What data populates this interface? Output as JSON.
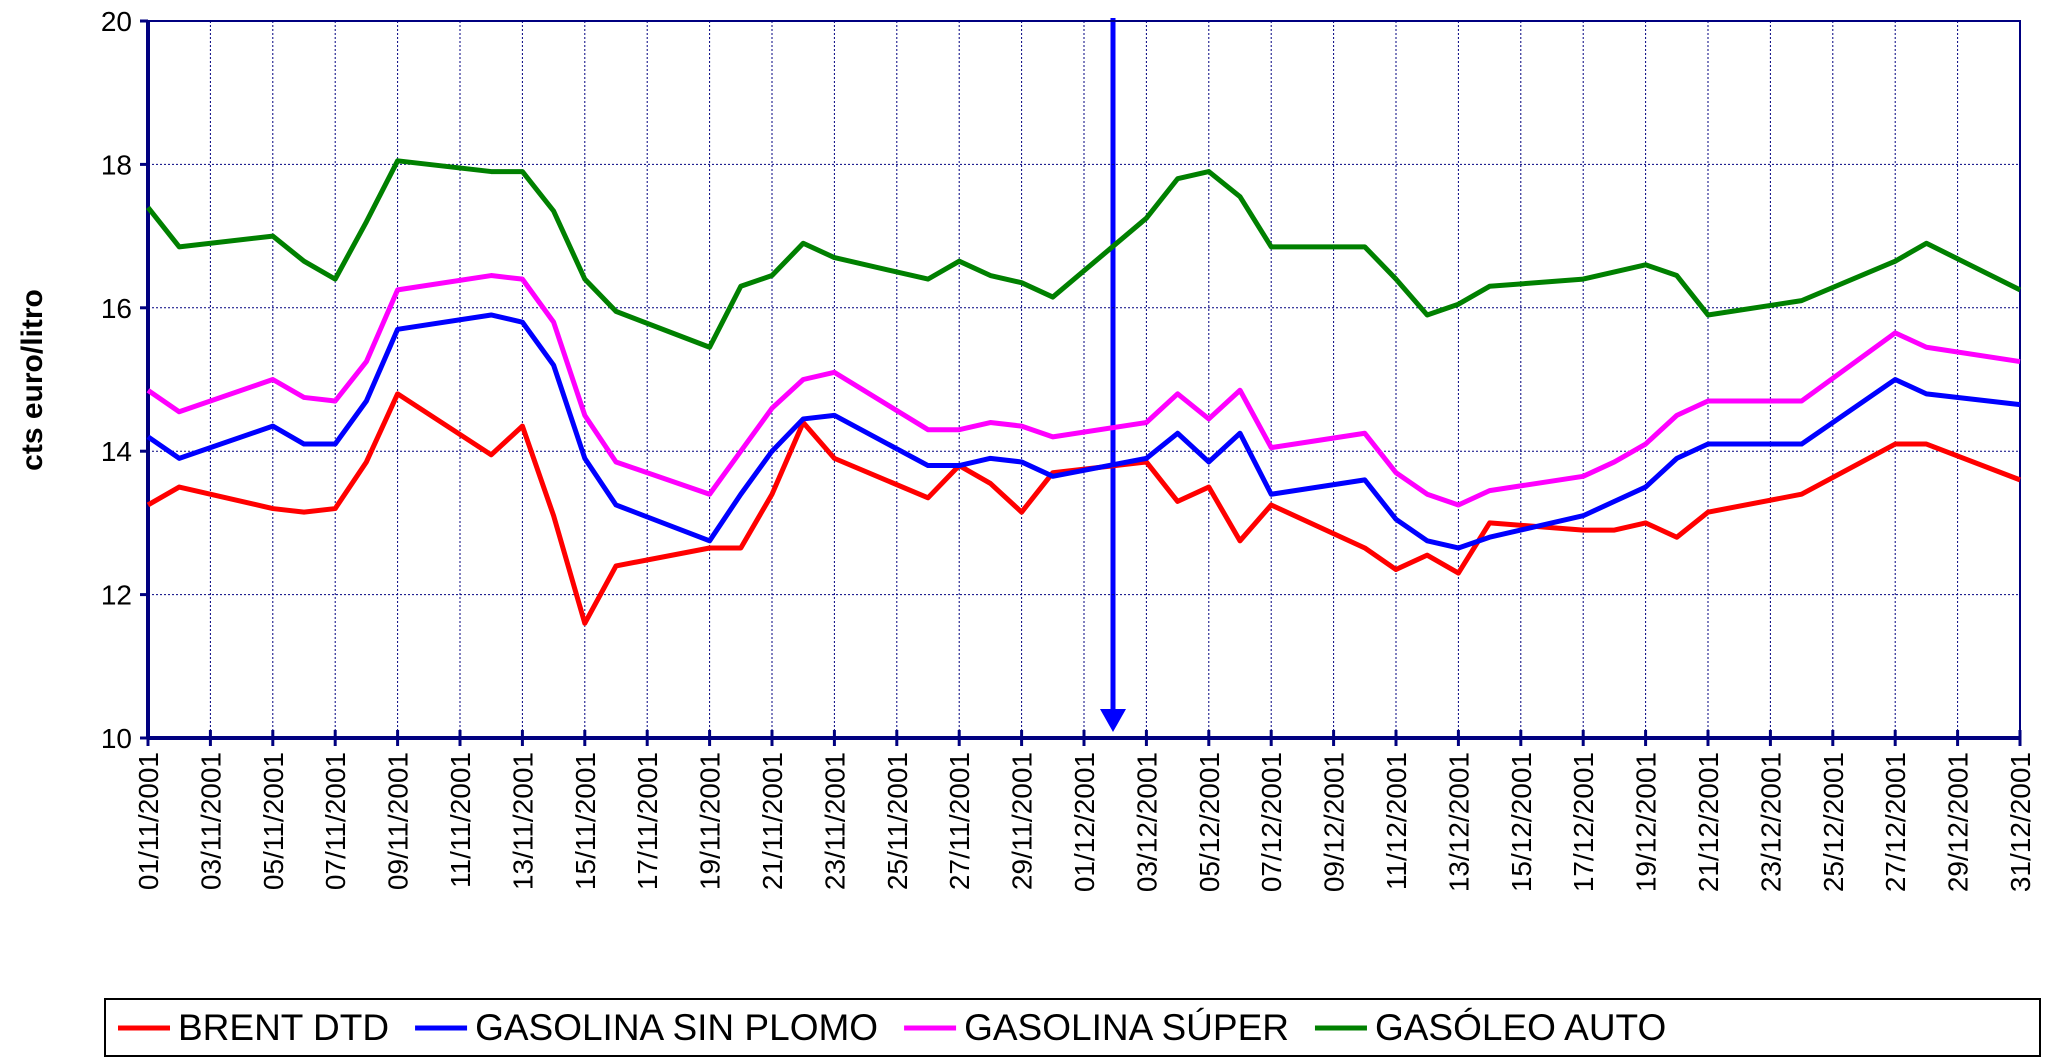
{
  "chart_data": {
    "type": "line",
    "y_label": "cts euro/litro",
    "x": [
      "01/11/2001",
      "02/11/2001",
      "05/11/2001",
      "06/11/2001",
      "07/11/2001",
      "08/11/2001",
      "09/11/2001",
      "12/11/2001",
      "13/11/2001",
      "14/11/2001",
      "15/11/2001",
      "16/11/2001",
      "19/11/2001",
      "20/11/2001",
      "21/11/2001",
      "22/11/2001",
      "23/11/2001",
      "26/11/2001",
      "27/11/2001",
      "28/11/2001",
      "29/11/2001",
      "30/11/2001",
      "03/12/2001",
      "04/12/2001",
      "05/12/2001",
      "06/12/2001",
      "07/12/2001",
      "10/12/2001",
      "11/12/2001",
      "12/12/2001",
      "13/12/2001",
      "14/12/2001",
      "17/12/2001",
      "18/12/2001",
      "19/12/2001",
      "20/12/2001",
      "21/12/2001",
      "24/12/2001",
      "27/12/2001",
      "28/12/2001",
      "31/12/2001"
    ],
    "series": [
      {
        "name": "BRENT DTD",
        "color": "#ff0000",
        "values": [
          13.25,
          13.5,
          13.2,
          13.15,
          13.2,
          13.85,
          14.8,
          13.95,
          14.35,
          13.1,
          11.6,
          12.4,
          12.65,
          12.65,
          13.4,
          14.4,
          13.9,
          13.35,
          13.8,
          13.55,
          13.15,
          13.7,
          13.85,
          13.3,
          13.5,
          12.75,
          13.25,
          12.65,
          12.35,
          12.55,
          12.3,
          13.0,
          12.9,
          12.9,
          13.0,
          12.8,
          13.15,
          13.4,
          14.1,
          14.1,
          13.6
        ]
      },
      {
        "name": "GASOLINA SIN PLOMO",
        "color": "#0000ff",
        "values": [
          14.2,
          13.9,
          14.35,
          14.1,
          14.1,
          14.7,
          15.7,
          15.9,
          15.8,
          15.2,
          13.9,
          13.25,
          12.75,
          13.4,
          14.0,
          14.45,
          14.5,
          13.8,
          13.8,
          13.9,
          13.85,
          13.65,
          13.9,
          14.25,
          13.85,
          14.25,
          13.4,
          13.6,
          13.05,
          12.75,
          12.65,
          12.8,
          13.1,
          13.3,
          13.5,
          13.9,
          14.1,
          14.1,
          15.0,
          14.8,
          14.65
        ]
      },
      {
        "name": "GASOLINA SÚPER",
        "color": "#ff00ff",
        "values": [
          14.85,
          14.55,
          15.0,
          14.75,
          14.7,
          15.25,
          16.25,
          16.45,
          16.4,
          15.8,
          14.5,
          13.85,
          13.4,
          14.0,
          14.6,
          15.0,
          15.1,
          14.3,
          14.3,
          14.4,
          14.35,
          14.2,
          14.4,
          14.8,
          14.45,
          14.85,
          14.05,
          14.25,
          13.7,
          13.4,
          13.25,
          13.45,
          13.65,
          13.85,
          14.1,
          14.5,
          14.7,
          14.7,
          15.65,
          15.45,
          15.25
        ]
      },
      {
        "name": "GASÓLEO AUTO",
        "color": "#008000",
        "values": [
          17.4,
          16.85,
          17.0,
          16.65,
          16.4,
          17.2,
          18.05,
          17.9,
          17.9,
          17.35,
          16.4,
          15.95,
          15.45,
          16.3,
          16.45,
          16.9,
          16.7,
          16.4,
          16.65,
          16.45,
          16.35,
          16.15,
          17.25,
          17.8,
          17.9,
          17.55,
          16.85,
          16.85,
          16.4,
          15.9,
          16.05,
          16.3,
          16.4,
          16.5,
          16.6,
          16.45,
          15.9,
          16.1,
          16.65,
          16.9,
          16.25
        ]
      }
    ],
    "xlim": [
      "01/11/2001",
      "31/12/2001"
    ],
    "xticks": [
      "01/11/2001",
      "03/11/2001",
      "05/11/2001",
      "07/11/2001",
      "09/11/2001",
      "11/11/2001",
      "13/11/2001",
      "15/11/2001",
      "17/11/2001",
      "19/11/2001",
      "21/11/2001",
      "23/11/2001",
      "25/11/2001",
      "27/11/2001",
      "29/11/2001",
      "01/12/2001",
      "03/12/2001",
      "05/12/2001",
      "07/12/2001",
      "09/12/2001",
      "11/12/2001",
      "13/12/2001",
      "15/12/2001",
      "17/12/2001",
      "19/12/2001",
      "21/12/2001",
      "23/12/2001",
      "25/12/2001",
      "27/12/2001",
      "29/12/2001",
      "31/12/2001"
    ],
    "ylim": [
      10,
      20
    ],
    "yticks": [
      10,
      12,
      14,
      16,
      18,
      20
    ],
    "grid": true,
    "legend": "bottom"
  }
}
